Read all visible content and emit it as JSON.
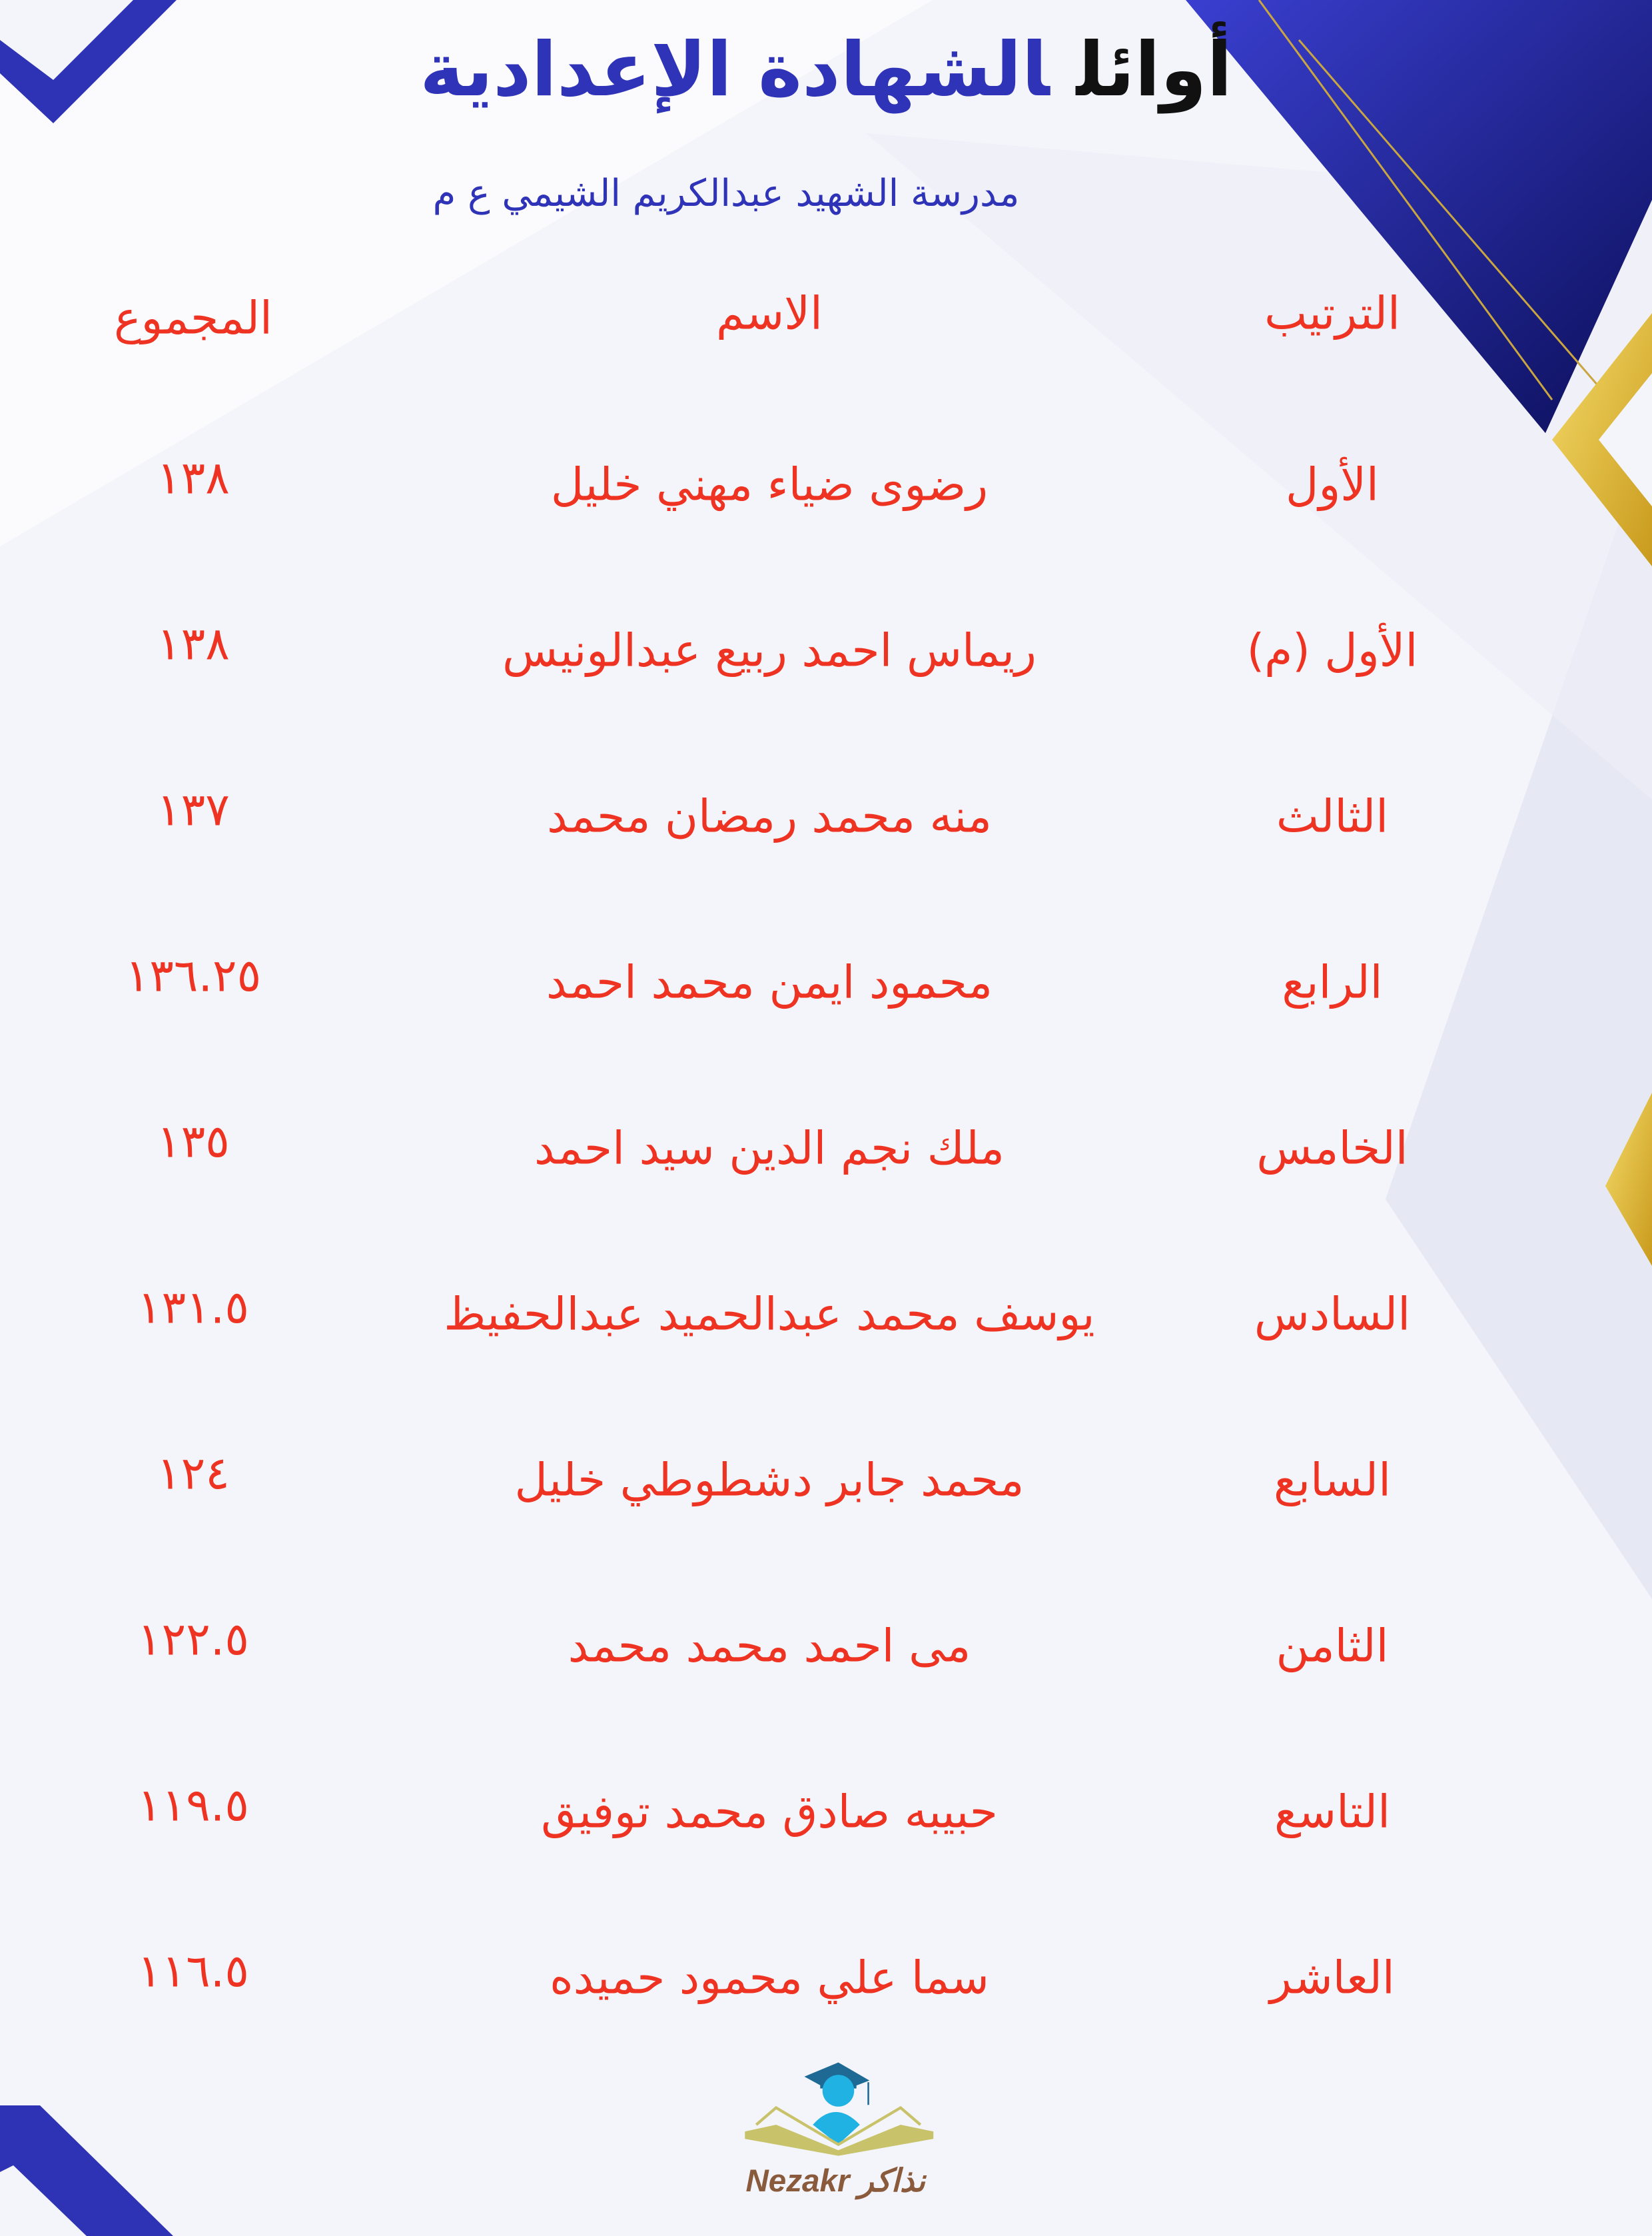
{
  "title": {
    "part1": "أوائل",
    "part2": "الشهادة الإعدادية"
  },
  "subtitle": "مدرسة الشهيد عبدالكريم الشيمي ع م",
  "headers": {
    "rank": "الترتيب",
    "name": "الاسم",
    "total": "المجموع"
  },
  "rows": [
    {
      "rank": "الأول",
      "name": "رضوى ضياء مهني خليل",
      "total": "١٣٨"
    },
    {
      "rank": "الأول (م)",
      "name": "ريماس احمد ربيع عبدالونيس",
      "total": "١٣٨"
    },
    {
      "rank": "الثالث",
      "name": "منه محمد رمضان محمد",
      "total": "١٣٧"
    },
    {
      "rank": "الرابع",
      "name": "محمود ايمن محمد احمد",
      "total": "١٣٦.٢٥"
    },
    {
      "rank": "الخامس",
      "name": "ملك نجم الدين سيد احمد",
      "total": "١٣٥"
    },
    {
      "rank": "السادس",
      "name": "يوسف محمد عبدالحميد عبدالحفيظ",
      "total": "١٣١.٥"
    },
    {
      "rank": "السابع",
      "name": "محمد جابر دشطوطي خليل",
      "total": "١٢٤"
    },
    {
      "rank": "الثامن",
      "name": "مى احمد محمد محمد",
      "total": "١٢٢.٥"
    },
    {
      "rank": "التاسع",
      "name": "حبيبه صادق محمد توفيق",
      "total": "١١٩.٥"
    },
    {
      "rank": "العاشر",
      "name": "سما علي محمود حميده",
      "total": "١١٦.٥"
    }
  ],
  "logo": {
    "text": "Nezakr نذاكر"
  },
  "colors": {
    "accent_blue": "#2f33b8",
    "text_red": "#ee3322",
    "gold": "#e8c23a",
    "brown": "#8a5a3c"
  }
}
